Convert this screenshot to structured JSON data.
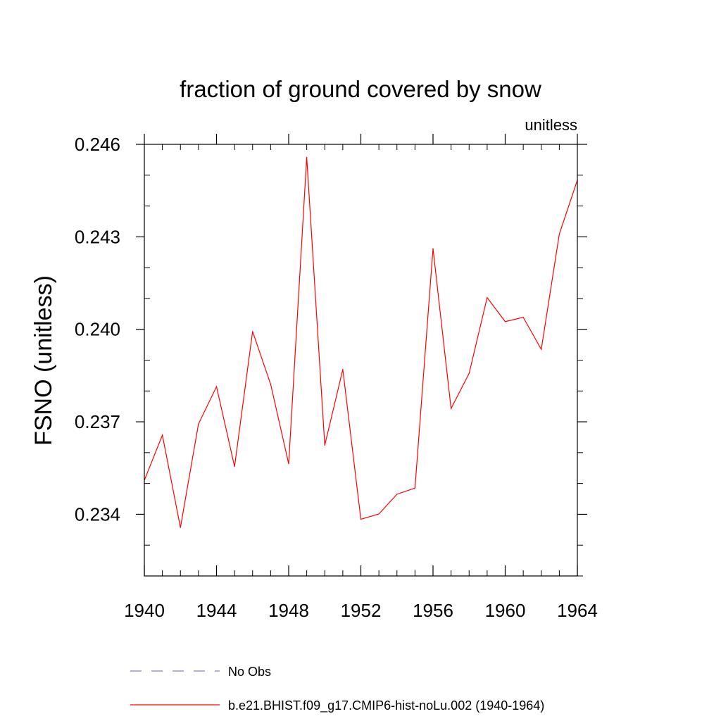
{
  "chart_data": {
    "type": "line",
    "title": "fraction of ground covered by snow",
    "units_label": "unitless",
    "ylabel": "FSNO  (unitless)",
    "xlabel": "",
    "xlim": [
      1940,
      1964
    ],
    "ylim": [
      0.232,
      0.246
    ],
    "x_ticks": [
      1940,
      1944,
      1948,
      1952,
      1956,
      1960,
      1964
    ],
    "x_tick_labels": [
      "1940",
      "1944",
      "1948",
      "1952",
      "1956",
      "1960",
      "1964"
    ],
    "x_minor_step": 1,
    "y_ticks": [
      0.234,
      0.237,
      0.24,
      0.243,
      0.246
    ],
    "y_tick_labels": [
      "0.234",
      "0.237",
      "0.240",
      "0.243",
      "0.246"
    ],
    "y_minor_step": 0.001,
    "grid": false,
    "legend_position": "bottom",
    "x": [
      1940,
      1941,
      1942,
      1943,
      1944,
      1945,
      1946,
      1947,
      1948,
      1949,
      1950,
      1951,
      1952,
      1953,
      1954,
      1955,
      1956,
      1957,
      1958,
      1959,
      1960,
      1961,
      1962,
      1963,
      1964
    ],
    "series": [
      {
        "name": "b.e21.BHIST.f09_g17.CMIP6-hist-noLu.002 (1940-1964)",
        "color": "#ff0000",
        "style": "solid",
        "values": [
          0.2351,
          0.23657,
          0.23357,
          0.23693,
          0.23814,
          0.23555,
          0.23993,
          0.23822,
          0.23564,
          0.24558,
          0.23624,
          0.2387,
          0.23384,
          0.23401,
          0.23465,
          0.23485,
          0.24262,
          0.23743,
          0.23857,
          0.24103,
          0.24025,
          0.24039,
          0.23935,
          0.24309,
          0.24484
        ]
      }
    ],
    "legend": [
      {
        "label": "No Obs",
        "color": "#8080c0",
        "style": "dashed"
      },
      {
        "label": "b.e21.BHIST.f09_g17.CMIP6-hist-noLu.002 (1940-1964)",
        "color": "#ff0000",
        "style": "solid"
      }
    ]
  }
}
